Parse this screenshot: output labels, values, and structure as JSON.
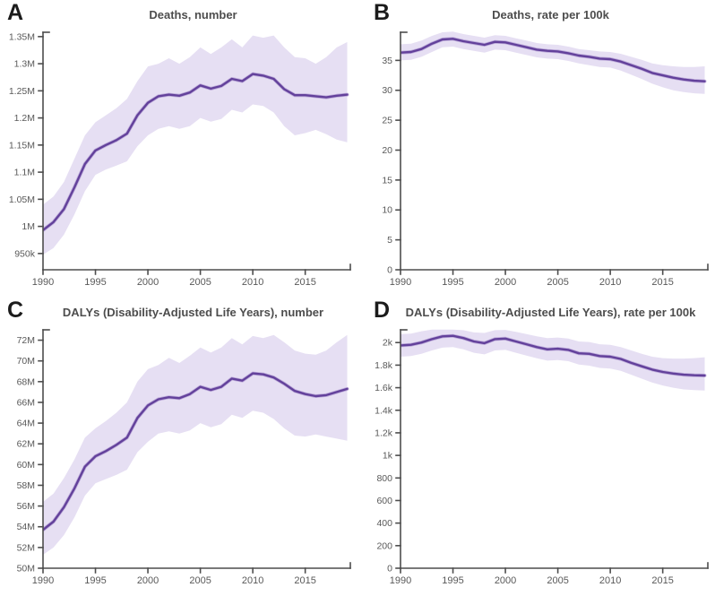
{
  "figure": {
    "background": "#ffffff",
    "rows": 2,
    "cols": 2
  },
  "style": {
    "line_color": "#63419b",
    "line_halo_color": "#9d82c6",
    "band_color": "#e6dff3",
    "axis_color": "#4d4d4d",
    "tick_label_color": "#595959",
    "title_color": "#4d4d4d",
    "letter_color": "#1b1b1b"
  },
  "chart_data": [
    {
      "type": "line",
      "letter": "A",
      "title": "Deaths, number",
      "xlabel": "",
      "ylabel": "",
      "grid": false,
      "legend": "none",
      "band": true,
      "x": [
        1990,
        1991,
        1992,
        1993,
        1994,
        1995,
        1996,
        1997,
        1998,
        1999,
        2000,
        2001,
        2002,
        2003,
        2004,
        2005,
        2006,
        2007,
        2008,
        2009,
        2010,
        2011,
        2012,
        2013,
        2014,
        2015,
        2016,
        2017,
        2018,
        2019
      ],
      "series": [
        {
          "name": "mean",
          "values": [
            993000,
            1008000,
            1032000,
            1072000,
            1115000,
            1140000,
            1150000,
            1159000,
            1171000,
            1205000,
            1228000,
            1240000,
            1243000,
            1241000,
            1247000,
            1260000,
            1254000,
            1259000,
            1272000,
            1268000,
            1281000,
            1278000,
            1272000,
            1253000,
            1242000,
            1242000,
            1240000,
            1238000,
            1241000,
            1243000
          ]
        },
        {
          "name": "upper",
          "values": [
            1040000,
            1055000,
            1082000,
            1125000,
            1168000,
            1192000,
            1205000,
            1218000,
            1235000,
            1268000,
            1295000,
            1300000,
            1310000,
            1300000,
            1312000,
            1330000,
            1318000,
            1330000,
            1345000,
            1330000,
            1352000,
            1348000,
            1352000,
            1330000,
            1312000,
            1310000,
            1300000,
            1312000,
            1330000,
            1340000
          ]
        },
        {
          "name": "lower",
          "values": [
            948000,
            960000,
            985000,
            1022000,
            1065000,
            1095000,
            1105000,
            1112000,
            1120000,
            1148000,
            1168000,
            1180000,
            1185000,
            1180000,
            1185000,
            1200000,
            1193000,
            1198000,
            1215000,
            1210000,
            1225000,
            1222000,
            1210000,
            1185000,
            1168000,
            1172000,
            1178000,
            1170000,
            1160000,
            1155000
          ]
        }
      ],
      "x_ticks": [
        1990,
        1995,
        2000,
        2005,
        2010,
        2015
      ],
      "y_ticks": {
        "values": [
          950000,
          1000000,
          1050000,
          1100000,
          1150000,
          1200000,
          1250000,
          1300000,
          1350000
        ],
        "labels": [
          "950k",
          "1M",
          "1.05M",
          "1.1M",
          "1.15M",
          "1.2M",
          "1.25M",
          "1.3M",
          "1.35M"
        ]
      },
      "xlim": [
        1990,
        2019.3
      ],
      "ylim": [
        920000,
        1358000
      ]
    },
    {
      "type": "line",
      "letter": "B",
      "title": "Deaths, rate per 100k",
      "xlabel": "",
      "ylabel": "",
      "grid": false,
      "legend": "none",
      "band": true,
      "x": [
        1990,
        1991,
        1992,
        1993,
        1994,
        1995,
        1996,
        1997,
        1998,
        1999,
        2000,
        2001,
        2002,
        2003,
        2004,
        2005,
        2006,
        2007,
        2008,
        2009,
        2010,
        2011,
        2012,
        2013,
        2014,
        2015,
        2016,
        2017,
        2018,
        2019
      ],
      "series": [
        {
          "name": "mean",
          "values": [
            36.3,
            36.4,
            36.9,
            37.8,
            38.5,
            38.6,
            38.2,
            37.9,
            37.6,
            38.1,
            38.0,
            37.6,
            37.2,
            36.8,
            36.6,
            36.5,
            36.2,
            35.8,
            35.6,
            35.3,
            35.2,
            34.8,
            34.2,
            33.6,
            32.9,
            32.5,
            32.1,
            31.8,
            31.6,
            31.5
          ]
        },
        {
          "name": "upper",
          "values": [
            37.7,
            37.8,
            38.3,
            39.1,
            39.7,
            39.8,
            39.4,
            39.1,
            38.8,
            39.2,
            39.1,
            38.7,
            38.3,
            37.9,
            37.7,
            37.6,
            37.3,
            36.9,
            36.7,
            36.5,
            36.4,
            36.1,
            35.6,
            35.1,
            34.5,
            34.2,
            34.0,
            33.9,
            33.9,
            34.0
          ]
        },
        {
          "name": "lower",
          "values": [
            35.0,
            35.1,
            35.6,
            36.4,
            37.2,
            37.3,
            36.9,
            36.6,
            36.3,
            36.8,
            36.7,
            36.3,
            35.9,
            35.5,
            35.3,
            35.2,
            34.9,
            34.5,
            34.2,
            33.9,
            33.8,
            33.3,
            32.6,
            31.9,
            31.1,
            30.5,
            30.0,
            29.7,
            29.5,
            29.4
          ]
        }
      ],
      "x_ticks": [
        1990,
        1995,
        2000,
        2005,
        2010,
        2015
      ],
      "y_ticks": {
        "values": [
          0,
          5,
          10,
          15,
          20,
          25,
          30,
          35
        ],
        "labels": [
          "0",
          "5",
          "10",
          "15",
          "20",
          "25",
          "30",
          "35"
        ]
      },
      "xlim": [
        1990,
        2019.3
      ],
      "ylim": [
        0,
        39.7
      ]
    },
    {
      "type": "line",
      "letter": "C",
      "title": "DALYs (Disability-Adjusted Life Years), number",
      "xlabel": "",
      "ylabel": "",
      "grid": false,
      "legend": "none",
      "band": true,
      "x": [
        1990,
        1991,
        1992,
        1993,
        1994,
        1995,
        1996,
        1997,
        1998,
        1999,
        2000,
        2001,
        2002,
        2003,
        2004,
        2005,
        2006,
        2007,
        2008,
        2009,
        2010,
        2011,
        2012,
        2013,
        2014,
        2015,
        2016,
        2017,
        2018,
        2019
      ],
      "series": [
        {
          "name": "mean",
          "values": [
            53700000,
            54500000,
            55900000,
            57700000,
            59800000,
            60800000,
            61300000,
            61900000,
            62600000,
            64500000,
            65700000,
            66300000,
            66500000,
            66400000,
            66800000,
            67500000,
            67200000,
            67500000,
            68300000,
            68100000,
            68800000,
            68700000,
            68400000,
            67800000,
            67100000,
            66800000,
            66600000,
            66700000,
            67000000,
            67300000
          ]
        },
        {
          "name": "upper",
          "values": [
            56400000,
            57200000,
            58700000,
            60500000,
            62600000,
            63500000,
            64200000,
            65000000,
            66000000,
            68000000,
            69200000,
            69600000,
            70300000,
            69800000,
            70500000,
            71300000,
            70800000,
            71300000,
            72200000,
            71600000,
            72400000,
            72200000,
            72500000,
            71800000,
            71000000,
            70700000,
            70600000,
            71000000,
            71800000,
            72500000
          ]
        },
        {
          "name": "lower",
          "values": [
            51300000,
            52000000,
            53200000,
            54900000,
            57000000,
            58200000,
            58600000,
            59000000,
            59500000,
            61200000,
            62200000,
            63000000,
            63200000,
            63000000,
            63300000,
            64000000,
            63600000,
            63900000,
            64800000,
            64500000,
            65200000,
            65000000,
            64400000,
            63500000,
            62800000,
            62700000,
            62900000,
            62700000,
            62500000,
            62300000
          ]
        }
      ],
      "x_ticks": [
        1990,
        1995,
        2000,
        2005,
        2010,
        2015
      ],
      "y_ticks": {
        "values": [
          50000000,
          52000000,
          54000000,
          56000000,
          58000000,
          60000000,
          62000000,
          64000000,
          66000000,
          68000000,
          70000000,
          72000000
        ],
        "labels": [
          "50M",
          "52M",
          "54M",
          "56M",
          "58M",
          "60M",
          "62M",
          "64M",
          "66M",
          "68M",
          "70M",
          "72M"
        ]
      },
      "xlim": [
        1990,
        2019.3
      ],
      "ylim": [
        50000000,
        73000000
      ]
    },
    {
      "type": "line",
      "letter": "D",
      "title": "DALYs (Disability-Adjusted Life Years), rate per 100k",
      "xlabel": "",
      "ylabel": "",
      "grid": false,
      "legend": "none",
      "band": true,
      "x": [
        1990,
        1991,
        1992,
        1993,
        1994,
        1995,
        1996,
        1997,
        1998,
        1999,
        2000,
        2001,
        2002,
        2003,
        2004,
        2005,
        2006,
        2007,
        2008,
        2009,
        2010,
        2011,
        2012,
        2013,
        2014,
        2015,
        2016,
        2017,
        2018,
        2019
      ],
      "series": [
        {
          "name": "mean",
          "values": [
            1975,
            1980,
            2000,
            2030,
            2055,
            2060,
            2040,
            2010,
            1995,
            2030,
            2035,
            2010,
            1985,
            1960,
            1940,
            1945,
            1935,
            1905,
            1900,
            1880,
            1875,
            1855,
            1820,
            1790,
            1760,
            1740,
            1725,
            1715,
            1710,
            1708
          ]
        },
        {
          "name": "upper",
          "values": [
            2075,
            2080,
            2100,
            2115,
            2115,
            2115,
            2110,
            2090,
            2085,
            2110,
            2112,
            2095,
            2075,
            2055,
            2040,
            2045,
            2035,
            2010,
            2005,
            1985,
            1980,
            1960,
            1930,
            1900,
            1875,
            1862,
            1858,
            1858,
            1862,
            1870
          ]
        },
        {
          "name": "lower",
          "values": [
            1875,
            1880,
            1900,
            1930,
            1955,
            1960,
            1940,
            1910,
            1895,
            1930,
            1935,
            1910,
            1885,
            1860,
            1840,
            1845,
            1835,
            1805,
            1795,
            1775,
            1770,
            1750,
            1715,
            1680,
            1645,
            1620,
            1600,
            1585,
            1578,
            1575
          ]
        }
      ],
      "x_ticks": [
        1990,
        1995,
        2000,
        2005,
        2010,
        2015
      ],
      "y_ticks": {
        "values": [
          0,
          200,
          400,
          600,
          800,
          1000,
          1200,
          1400,
          1600,
          1800,
          2000
        ],
        "labels": [
          "0",
          "200",
          "400",
          "600",
          "800",
          "1k",
          "1.2k",
          "1.4k",
          "1.6k",
          "1.8k",
          "2k"
        ]
      },
      "xlim": [
        1990,
        2019.3
      ],
      "ylim": [
        0,
        2113
      ]
    }
  ]
}
